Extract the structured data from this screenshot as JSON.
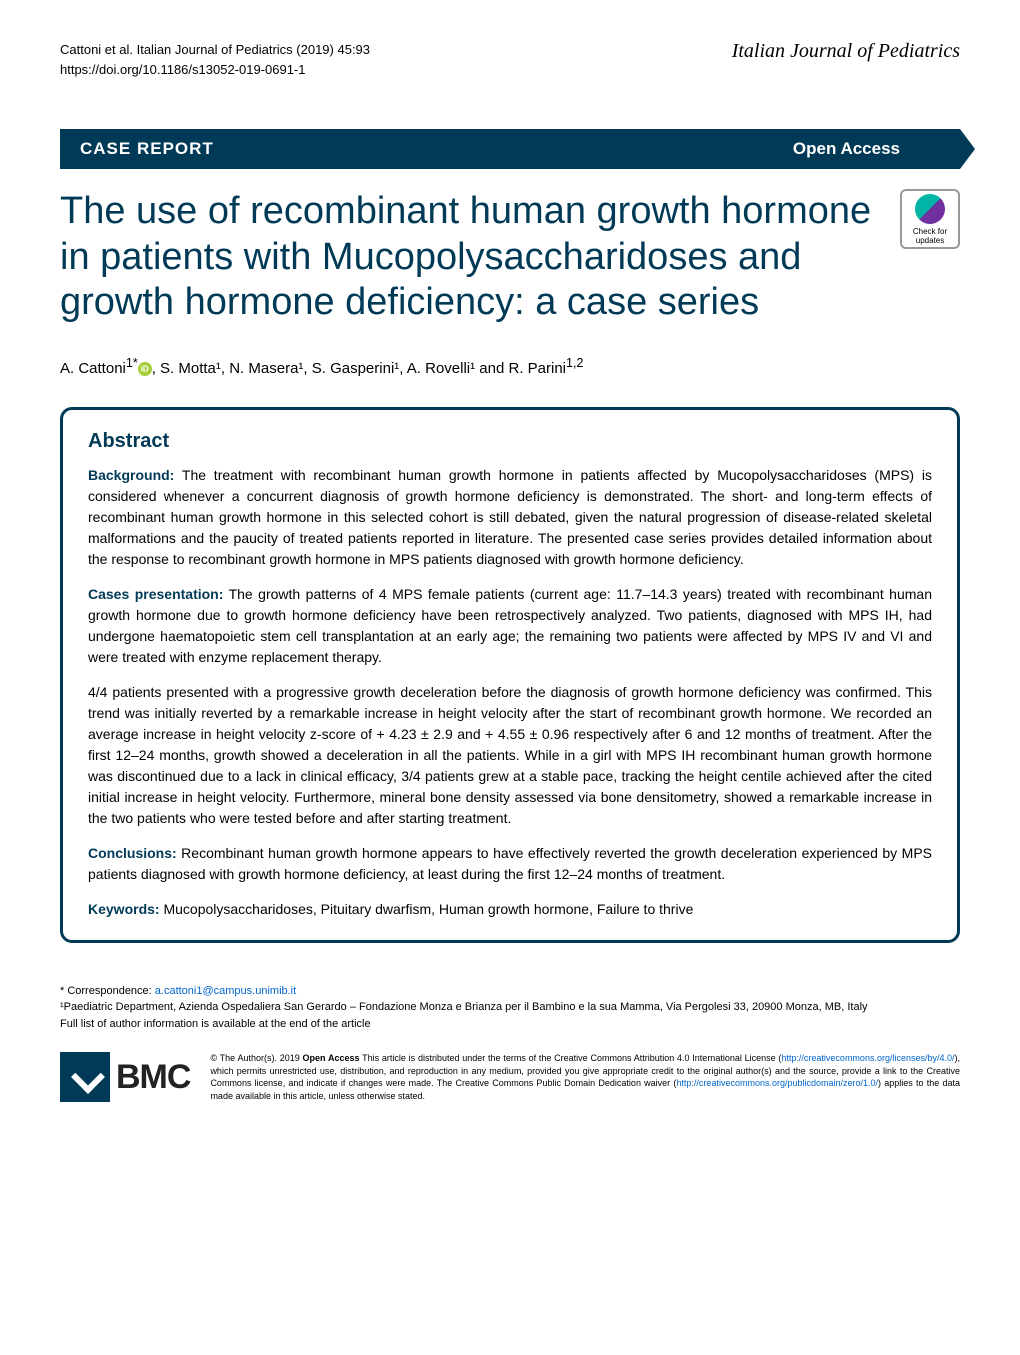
{
  "header": {
    "citation": "Cattoni et al. Italian Journal of Pediatrics        (2019) 45:93",
    "doi": "https://doi.org/10.1186/s13052-019-0691-1",
    "journal_name": "Italian Journal of Pediatrics"
  },
  "banner": {
    "type": "CASE REPORT",
    "access": "Open Access"
  },
  "article": {
    "title": "The use of recombinant human growth hormone in patients with Mucopolysaccharidoses and growth hormone deficiency: a case series",
    "check_label": "Check for updates"
  },
  "authors": {
    "list": "A. Cattoni",
    "sup1": "1*",
    "rest": ", S. Motta¹, N. Masera¹, S. Gasperini¹, A. Rovelli¹ and R. Parini",
    "sup_last": "1,2"
  },
  "abstract": {
    "heading": "Abstract",
    "background_label": "Background:",
    "background_text": " The treatment with recombinant human growth hormone in patients affected by Mucopolysaccharidoses (MPS) is considered whenever a concurrent diagnosis of growth hormone deficiency is demonstrated. The short- and long-term effects of recombinant human growth hormone in this selected cohort is still debated, given the natural progression of disease-related skeletal malformations and the paucity of treated patients reported in literature. The presented case series provides detailed information about the response to recombinant growth hormone in MPS patients diagnosed with growth hormone deficiency.",
    "cases_label": "Cases presentation:",
    "cases_text1": " The growth patterns of 4 MPS female patients (current age: 11.7–14.3 years) treated with recombinant human growth hormone due to growth hormone deficiency have been retrospectively analyzed. Two patients, diagnosed with MPS IH, had undergone haematopoietic stem cell transplantation at an early age; the remaining two patients were affected by MPS IV and VI and were treated with enzyme replacement therapy.",
    "cases_text2": "4/4 patients presented with a progressive growth deceleration before the diagnosis of growth hormone deficiency was confirmed. This trend was initially reverted by a remarkable increase in height velocity after the start of recombinant growth hormone. We recorded an average increase in height velocity z-score of + 4.23 ± 2.9 and + 4.55 ± 0.96 respectively after 6 and 12 months of treatment. After the first 12–24 months, growth showed a deceleration in all the patients. While in a girl with MPS IH recombinant human growth hormone was discontinued due to a lack in clinical efficacy, 3/4 patients grew at a stable pace, tracking the height centile achieved after the cited initial increase in height velocity. Furthermore, mineral bone density assessed via bone densitometry, showed a remarkable increase in the two patients who were tested before and after starting treatment.",
    "conclusions_label": "Conclusions:",
    "conclusions_text": " Recombinant human growth hormone appears to have effectively reverted the growth deceleration experienced by MPS patients diagnosed with growth hormone deficiency, at least during the first 12–24 months of treatment.",
    "keywords_label": "Keywords:",
    "keywords_text": " Mucopolysaccharidoses, Pituitary dwarfism, Human growth hormone, Failure to thrive"
  },
  "correspondence": {
    "line1": "* Correspondence: ",
    "email": "a.cattoni1@campus.unimib.it",
    "line2": "¹Paediatric Department, Azienda Ospedaliera San Gerardo – Fondazione Monza e Brianza per il Bambino e la sua Mamma, Via Pergolesi 33, 20900 Monza, MB, Italy",
    "line3": "Full list of author information is available at the end of the article"
  },
  "footer": {
    "bmc": "BMC",
    "license_pre": "© The Author(s). 2019 ",
    "open_access": "Open Access",
    "license_text1": " This article is distributed under the terms of the Creative Commons Attribution 4.0 International License (",
    "cc_link": "http://creativecommons.org/licenses/by/4.0/",
    "license_text2": "), which permits unrestricted use, distribution, and reproduction in any medium, provided you give appropriate credit to the original author(s) and the source, provide a link to the Creative Commons license, and indicate if changes were made. The Creative Commons Public Domain Dedication waiver (",
    "pd_link": "http://creativecommons.org/publicdomain/zero/1.0/",
    "license_text3": ") applies to the data made available in this article, unless otherwise stated."
  },
  "colors": {
    "primary": "#003a57",
    "link": "#0066cc",
    "orcid": "#a6ce39"
  }
}
